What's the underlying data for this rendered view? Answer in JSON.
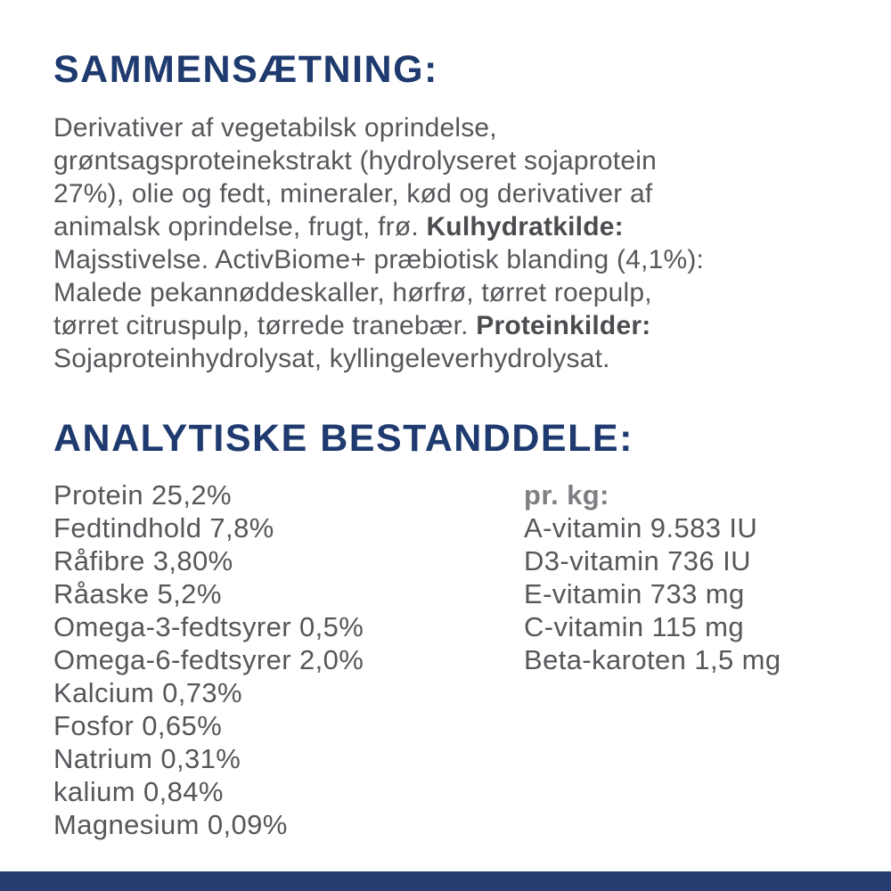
{
  "colors": {
    "background": "#ffffff",
    "heading_navy": "#1e3a6e",
    "body_gray": "#55575b",
    "per_kg_gray": "#7d7f83",
    "footer_bar": "#253c70"
  },
  "composition": {
    "heading": "SAMMENSÆTNING:",
    "lines": [
      [
        {
          "text": "Derivativer af vegetabilsk oprindelse,",
          "bold": false
        }
      ],
      [
        {
          "text": "grøntsagsproteinekstrakt (hydrolyseret sojaprotein",
          "bold": false
        }
      ],
      [
        {
          "text": "27%), olie og fedt, mineraler, kød og derivativer af",
          "bold": false
        }
      ],
      [
        {
          "text": "animalsk oprindelse, frugt, frø. ",
          "bold": false
        },
        {
          "text": "Kulhydratkilde:",
          "bold": true
        }
      ],
      [
        {
          "text": "Majsstivelse. ActivBiome+ præbiotisk blanding (4,1%):",
          "bold": false
        }
      ],
      [
        {
          "text": "Malede pekannøddeskaller, hørfrø, tørret roepulp,",
          "bold": false
        }
      ],
      [
        {
          "text": "tørret citruspulp, tørrede tranebær. ",
          "bold": false
        },
        {
          "text": "Proteinkilder:",
          "bold": true
        }
      ],
      [
        {
          "text": "Sojaproteinhydrolysat, kyllingeleverhydrolysat.",
          "bold": false
        }
      ]
    ]
  },
  "analytical": {
    "heading": "ANALYTISKE BESTANDDELE:",
    "left_items": [
      {
        "label": "Protein",
        "value": "25,2%"
      },
      {
        "label": "Fedtindhold",
        "value": "7,8%"
      },
      {
        "label": "Råfibre",
        "value": "3,80%"
      },
      {
        "label": "Råaske",
        "value": "5,2%"
      },
      {
        "label": "Omega-3-fedtsyrer",
        "value": "0,5%"
      },
      {
        "label": "Omega-6-fedtsyrer",
        "value": "2,0%"
      },
      {
        "label": "Kalcium",
        "value": "0,73%"
      },
      {
        "label": "Fosfor",
        "value": "0,65%"
      },
      {
        "label": "Natrium",
        "value": "0,31%"
      },
      {
        "label": "kalium",
        "value": "0,84%"
      },
      {
        "label": "Magnesium",
        "value": "0,09%"
      }
    ],
    "per_kg_header": "pr. kg:",
    "right_items": [
      {
        "label": "A-vitamin",
        "value": "9.583 IU"
      },
      {
        "label": "D3-vitamin",
        "value": "736 IU"
      },
      {
        "label": "E-vitamin",
        "value": "733 mg"
      },
      {
        "label": "C-vitamin",
        "value": "115 mg"
      },
      {
        "label": "Beta-karoten",
        "value": "1,5 mg"
      }
    ]
  }
}
